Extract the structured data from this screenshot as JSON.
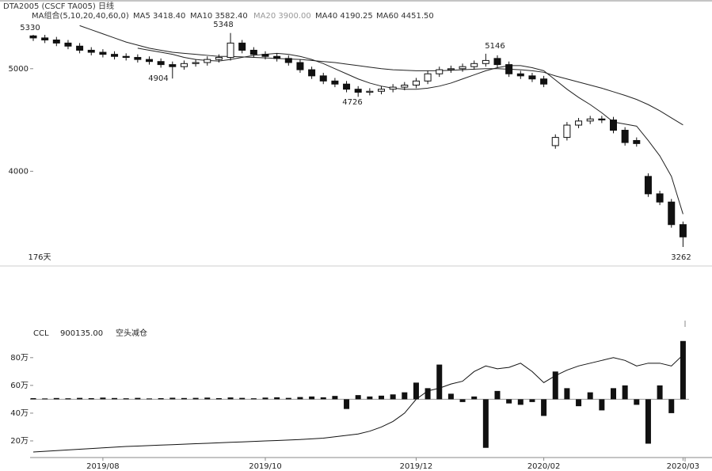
{
  "header": {
    "symbol": "DTA2005 (CSCF TA005) 日线",
    "ma_group": "MA组合(5,10,20,40,60,0)",
    "ma5": "MA5 3418.40",
    "ma10": "MA10 3582.40",
    "ma20": "MA20 3900.00",
    "ma40": "MA40 4190.25",
    "ma60": "MA60 4451.50"
  },
  "chart_data": [
    {
      "type": "candlestick",
      "categories": [
        null,
        null,
        null,
        null,
        null,
        null,
        "2019/08",
        null,
        null,
        null,
        null,
        null,
        null,
        null,
        null,
        null,
        null,
        null,
        null,
        null,
        "2019/10",
        null,
        null,
        null,
        null,
        null,
        null,
        null,
        null,
        null,
        null,
        null,
        null,
        "2019/12",
        null,
        null,
        null,
        null,
        null,
        null,
        null,
        null,
        null,
        null,
        "2020/02",
        null,
        null,
        null,
        null,
        null,
        null,
        null,
        null,
        null,
        null,
        null,
        "2020/03"
      ],
      "open": [
        5320,
        5300,
        5280,
        5250,
        5220,
        5180,
        5160,
        5140,
        5120,
        5110,
        5090,
        5070,
        5040,
        5020,
        5050,
        5060,
        5090,
        5110,
        5250,
        5180,
        5140,
        5120,
        5100,
        5060,
        4990,
        4930,
        4880,
        4850,
        4800,
        4770,
        4780,
        4800,
        4820,
        4840,
        4880,
        4950,
        4990,
        5000,
        5020,
        5050,
        5100,
        5040,
        4950,
        4930,
        4900,
        4250,
        4330,
        4450,
        4490,
        4510,
        4500,
        4400,
        4300,
        3950,
        3780,
        3700,
        3480
      ],
      "high": [
        5330,
        5330,
        5310,
        5280,
        5250,
        5210,
        5190,
        5170,
        5150,
        5140,
        5120,
        5100,
        5070,
        5080,
        5090,
        5120,
        5140,
        5348,
        5280,
        5210,
        5170,
        5150,
        5130,
        5090,
        5020,
        4960,
        4910,
        4880,
        4830,
        4810,
        4830,
        4850,
        4870,
        4910,
        4980,
        5020,
        5030,
        5050,
        5080,
        5146,
        5130,
        5070,
        4980,
        4960,
        4930,
        4360,
        4480,
        4520,
        4540,
        4540,
        4530,
        4430,
        4330,
        3980,
        3810,
        3730,
        3510
      ],
      "low": [
        5270,
        5250,
        5220,
        5190,
        5150,
        5130,
        5110,
        5090,
        5080,
        5060,
        5040,
        5010,
        4904,
        4990,
        5020,
        5030,
        5060,
        5080,
        5150,
        5110,
        5090,
        5070,
        5030,
        4960,
        4900,
        4850,
        4820,
        4770,
        4726,
        4740,
        4750,
        4770,
        4790,
        4810,
        4850,
        4920,
        4960,
        4970,
        4990,
        5020,
        5010,
        4920,
        4900,
        4870,
        4820,
        4220,
        4300,
        4420,
        4460,
        4470,
        4370,
        4250,
        4240,
        3750,
        3670,
        3450,
        3262
      ],
      "close": [
        5300,
        5280,
        5250,
        5220,
        5180,
        5160,
        5140,
        5120,
        5110,
        5090,
        5070,
        5040,
        5020,
        5050,
        5060,
        5090,
        5110,
        5250,
        5180,
        5140,
        5120,
        5100,
        5060,
        4990,
        4930,
        4880,
        4850,
        4800,
        4770,
        4780,
        4800,
        4820,
        4840,
        4880,
        4950,
        4990,
        5000,
        5020,
        5050,
        5080,
        5040,
        4950,
        4930,
        4900,
        4850,
        4330,
        4450,
        4490,
        4510,
        4500,
        4400,
        4280,
        4270,
        3780,
        3700,
        3480,
        3360
      ],
      "series": [
        {
          "color": "#222222",
          "values": [
            null,
            null,
            null,
            null,
            null,
            null,
            null,
            null,
            null,
            5200,
            5180,
            5160,
            5140,
            5110,
            5090,
            5080,
            5075,
            5090,
            5110,
            5130,
            5140,
            5150,
            5140,
            5120,
            5090,
            5050,
            5000,
            4950,
            4900,
            4860,
            4830,
            4810,
            4800,
            4800,
            4810,
            4830,
            4860,
            4900,
            4940,
            4980,
            5010,
            5030,
            5030,
            5010,
            4980,
            4890,
            4800,
            4720,
            4650,
            4570,
            4480,
            4460,
            4440,
            4300,
            4150,
            3950,
            3582.4
          ]
        },
        {
          "color": "#222222",
          "values": [
            null,
            null,
            null,
            null,
            5420,
            5380,
            5340,
            5300,
            5260,
            5230,
            5200,
            5180,
            5160,
            5150,
            5140,
            5130,
            5120,
            5120,
            5115,
            5110,
            5105,
            5100,
            5095,
            5090,
            5080,
            5070,
            5060,
            5045,
            5030,
            5015,
            5000,
            4990,
            4985,
            4980,
            4980,
            4980,
            4985,
            4990,
            4995,
            5000,
            5000,
            4995,
            4990,
            4980,
            4965,
            4930,
            4900,
            4870,
            4840,
            4810,
            4775,
            4740,
            4700,
            4650,
            4590,
            4520,
            4451.5
          ]
        }
      ],
      "annotations": [
        "5330",
        "5348",
        "4904",
        "4726",
        "5146",
        "3262",
        "176天"
      ],
      "ylim": [
        3092,
        5554
      ],
      "yticks": [
        4000,
        5000
      ],
      "up_color": "#ffffff",
      "down_color": "#111111"
    },
    {
      "type": "bar_line",
      "title": "CCL",
      "value_text": "900135.00",
      "signal": "空头减仓",
      "baseline": 50,
      "bars": [
        50.8,
        50.6,
        50.9,
        50.7,
        51,
        50.8,
        51.2,
        50.9,
        50.7,
        51,
        50.6,
        50.8,
        51.1,
        50.9,
        51,
        51.2,
        50.8,
        51.3,
        51,
        50.7,
        51.2,
        51.4,
        51,
        51.6,
        52,
        51.4,
        52.4,
        43,
        53,
        52,
        52.6,
        53.5,
        55,
        62,
        58,
        75,
        54,
        48,
        52,
        15,
        56,
        47,
        46,
        48,
        38,
        70,
        58,
        45,
        55,
        42,
        58,
        60,
        46,
        18,
        60,
        40,
        92
      ],
      "line": [
        12,
        12.5,
        13,
        13.5,
        14,
        14.5,
        15,
        15.5,
        16,
        16.3,
        16.6,
        17,
        17.3,
        17.6,
        18,
        18.3,
        18.6,
        19,
        19.3,
        19.6,
        20,
        20.3,
        20.6,
        21,
        21.5,
        22,
        23,
        24,
        25,
        27,
        30,
        34,
        40,
        50,
        56,
        58,
        61,
        63,
        70,
        74,
        72,
        73,
        76,
        70,
        62,
        67,
        71,
        74,
        76,
        78,
        80,
        78,
        74,
        76,
        76,
        74,
        82
      ],
      "ylim": [
        8,
        101
      ],
      "yticks": [
        {
          "value": 20,
          "label": "20万"
        },
        {
          "value": 40,
          "label": "40万"
        },
        {
          "value": 60,
          "label": "60万"
        },
        {
          "value": 80,
          "label": "80万"
        }
      ],
      "color": "#111111"
    }
  ]
}
